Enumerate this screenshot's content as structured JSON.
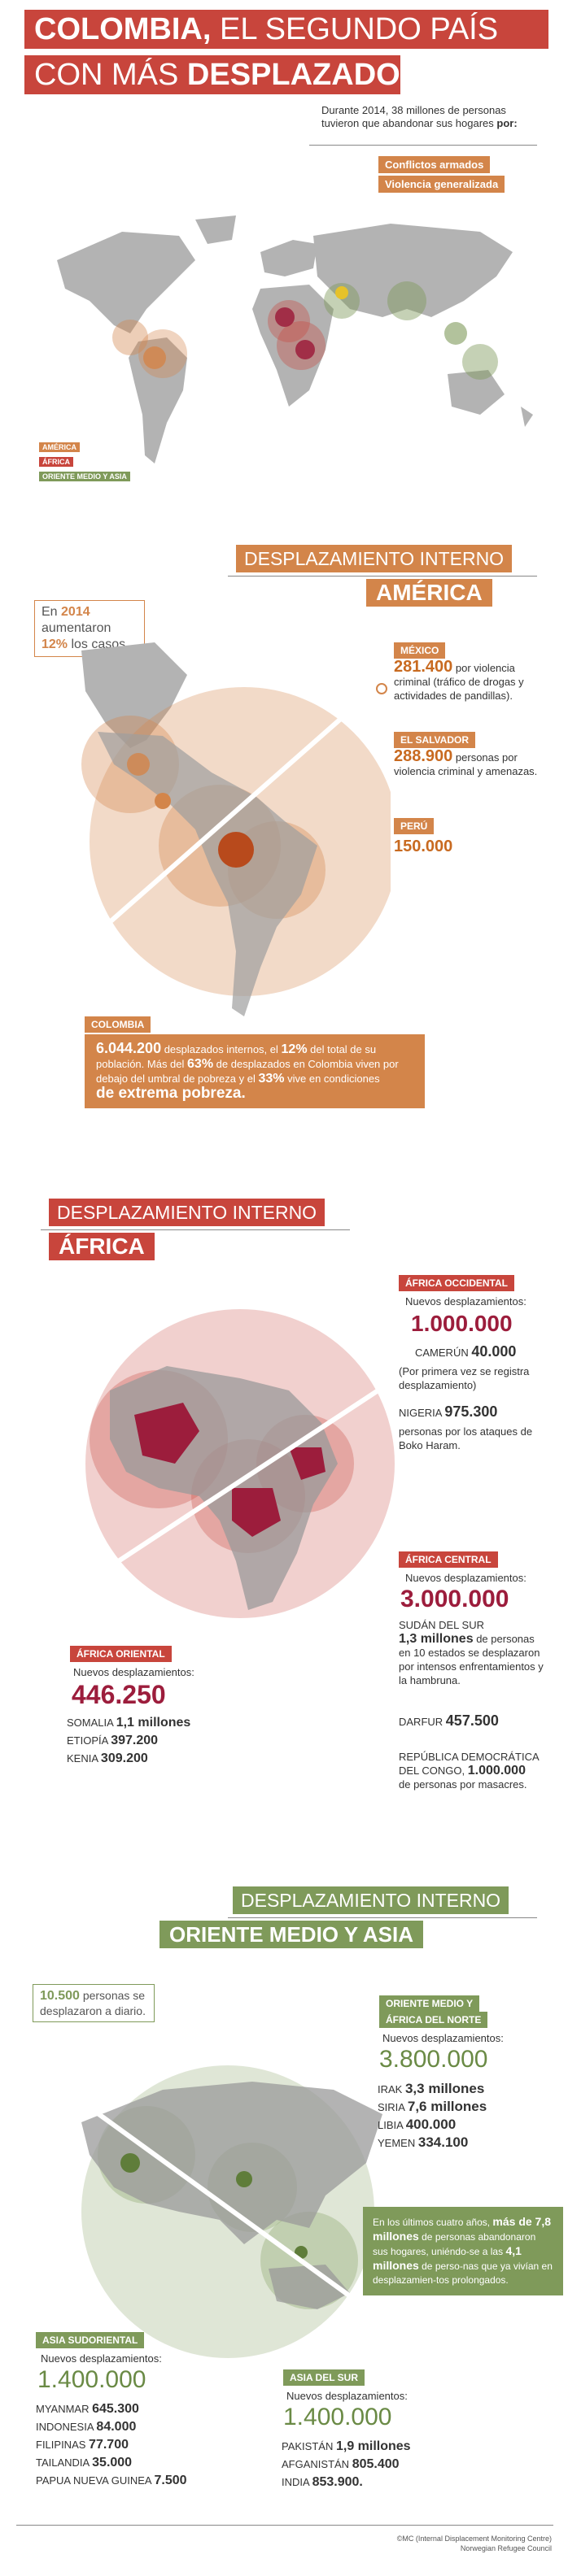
{
  "header": {
    "title_part1": "COLOMBIA,",
    "title_part2": " EL SEGUNDO PAÍS",
    "title_line2a": "CON MÁS ",
    "title_line2b": "DESPLAZADOS",
    "intro": "Durante 2014, 38 millones de personas tuvieron que abandonar sus hogares",
    "intro_por": "por:",
    "cause1": "Conflictos armados",
    "cause2": "Violencia generalizada"
  },
  "legend": {
    "america": "AMÉRICA",
    "africa": "ÁFRICA",
    "asia": "ORIENTE MEDIO Y ASIA"
  },
  "america": {
    "heading1": "DESPLAZAMIENTO INTERNO",
    "heading2": "AMÉRICA",
    "note_pre": "En ",
    "note_year": "2014",
    "note_mid": " aumentaron",
    "note_pct": "12%",
    "note_post": " los casos.",
    "mexico": {
      "tag": "MÉXICO",
      "num": "281.400",
      "text": " por violencia criminal (tráfico de drogas y actividades de pandillas)."
    },
    "salvador": {
      "tag": "EL SALVADOR",
      "num": "288.900",
      "text": " personas por violencia criminal y amenazas."
    },
    "peru": {
      "tag": "PERÚ",
      "num": "150.000"
    },
    "colombia": {
      "tag": "COLOMBIA",
      "num": "6.044.200",
      "t1": " desplazados internos, el ",
      "pct1": "12%",
      "t2": " del total de su población. Más del ",
      "pct2": "63%",
      "t3": " de desplazados en Colombia viven por debajo del umbral de pobreza y el ",
      "pct3": "33%",
      "t4": " vive en condiciones",
      "t5": "de extrema pobreza."
    }
  },
  "africa": {
    "heading1": "DESPLAZAMIENTO INTERNO",
    "heading2": "ÁFRICA",
    "occidental": {
      "tag": "ÁFRICA OCCIDENTAL",
      "label": "Nuevos desplazamientos:",
      "num": "1.000.000",
      "cam_name": "CAMERÚN",
      "cam_num": "40.000",
      "cam_note": "(Por primera vez se registra desplazamiento)",
      "nig_name": "NIGERIA",
      "nig_num": "975.300",
      "nig_note": "personas por los ataques de Boko Haram."
    },
    "central": {
      "tag": "ÁFRICA CENTRAL",
      "label": "Nuevos desplazamientos:",
      "num": "3.000.000",
      "sudan_name": "SUDÁN DEL SUR",
      "sudan_num": "1,3 millones",
      "sudan_note": " de personas en 10 estados se desplazaron por intensos enfrentamientos y la hambruna.",
      "darfur_name": "DARFUR",
      "darfur_num": "457.500",
      "rdc_name": "REPÚBLICA DEMOCRÁTICA DEL CONGO,",
      "rdc_num": "1.000.000",
      "rdc_note": "de personas por masacres."
    },
    "oriental": {
      "tag": "ÁFRICA ORIENTAL",
      "label": "Nuevos desplazamientos:",
      "num": "446.250",
      "rows": [
        {
          "name": "SOMALIA",
          "value": "1,1 millones"
        },
        {
          "name": "ETIOPÍA",
          "value": "397.200"
        },
        {
          "name": "KENIA",
          "value": "309.200"
        }
      ]
    }
  },
  "asia": {
    "heading1": "DESPLAZAMIENTO INTERNO",
    "heading2": "ORIENTE MEDIO Y ASIA",
    "note_num": "10.500",
    "note_text": " personas se desplazaron a diario.",
    "middle_east": {
      "tag1": "ORIENTE MEDIO Y",
      "tag2": "ÁFRICA DEL NORTE",
      "label": "Nuevos desplazamientos:",
      "num": "3.800.000",
      "rows": [
        {
          "name": "IRAK",
          "value": "3,3 millones"
        },
        {
          "name": "SIRIA",
          "value": "7,6 millones"
        },
        {
          "name": "LIBIA",
          "value": "400.000"
        },
        {
          "name": "YEMEN",
          "value": "334.100"
        }
      ]
    },
    "box": {
      "t1": "En los últimos cuatro años, ",
      "b1": "más de 7,8 millones",
      "t2": " de personas abandonaron sus hogares, uniéndo-se a las ",
      "b2": "4,1 millones",
      "t3": " de perso-nas que ya vivían en desplazamien-tos prolongados."
    },
    "southeast": {
      "tag": "ASIA SUDORIENTAL",
      "label": "Nuevos desplazamientos:",
      "num": "1.400.000",
      "rows": [
        {
          "name": "MYANMAR",
          "value": "645.300"
        },
        {
          "name": "INDONESIA",
          "value": "84.000"
        },
        {
          "name": "FILIPINAS",
          "value": "77.700"
        },
        {
          "name": "TAILANDIA",
          "value": "35.000"
        },
        {
          "name": "PAPUA NUEVA GUINEA",
          "value": "7.500"
        }
      ]
    },
    "south": {
      "tag": "ASIA DEL SUR",
      "label": "Nuevos desplazamientos:",
      "num": "1.400.000",
      "rows": [
        {
          "name": "PAKISTÁN",
          "value": "1,9 millones"
        },
        {
          "name": "AFGANISTÁN",
          "value": "805.400"
        },
        {
          "name": "INDIA",
          "value": "853.900."
        }
      ]
    }
  },
  "footer": {
    "line1": "©MC (Internal Displacement Monitoring Centre)",
    "line2": "Norwegian Refugee Council"
  },
  "colors": {
    "red": "#c8453c",
    "orange": "#d3854a",
    "green": "#7f9a5a",
    "crimson": "#9c1d3c"
  }
}
